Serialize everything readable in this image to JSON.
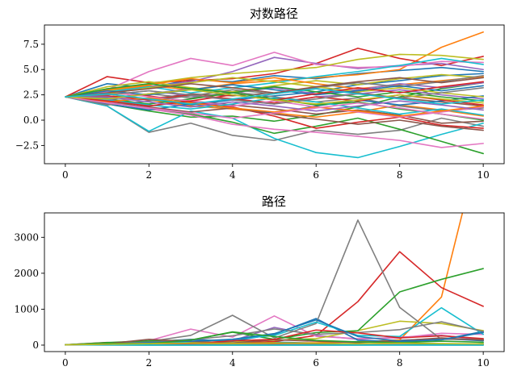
{
  "chart_data": [
    {
      "type": "line",
      "title": "对数路径",
      "xlabel": "",
      "ylabel": "",
      "xlim": [
        -0.5,
        10.5
      ],
      "ylim": [
        -4.3,
        9.4
      ],
      "xticks": [
        0,
        2,
        4,
        6,
        8,
        10
      ],
      "xtick_labels": [
        "0",
        "2",
        "4",
        "6",
        "8",
        "10"
      ],
      "yticks": [
        -2.5,
        0.0,
        2.5,
        5.0,
        7.5
      ],
      "ytick_labels": [
        "−2.5",
        "0.0",
        "2.5",
        "5.0",
        "7.5"
      ],
      "grid": false,
      "x": [
        0,
        1,
        2,
        3,
        4,
        5,
        6,
        7,
        8,
        9,
        10
      ],
      "series": [
        {
          "color": "#1f77b4",
          "values": [
            2.3,
            3.6,
            3.2,
            4.0,
            3.8,
            4.4,
            4.1,
            4.6,
            4.9,
            5.2,
            4.8
          ]
        },
        {
          "color": "#ff7f0e",
          "values": [
            2.3,
            2.9,
            3.4,
            3.0,
            3.6,
            3.9,
            4.2,
            4.5,
            5.0,
            7.2,
            8.7
          ]
        },
        {
          "color": "#2ca02c",
          "values": [
            2.3,
            1.6,
            0.9,
            0.3,
            0.4,
            -0.1,
            0.5,
            1.3,
            2.3,
            3.1,
            3.7
          ]
        },
        {
          "color": "#d62728",
          "values": [
            2.3,
            4.3,
            3.7,
            3.9,
            4.1,
            4.6,
            5.6,
            7.1,
            6.1,
            5.4,
            6.3
          ]
        },
        {
          "color": "#9467bd",
          "values": [
            2.3,
            2.7,
            3.3,
            3.8,
            4.8,
            6.2,
            5.6,
            5.1,
            5.4,
            5.6,
            5.0
          ]
        },
        {
          "color": "#8c564b",
          "values": [
            2.3,
            2.4,
            2.1,
            2.6,
            2.4,
            2.7,
            3.1,
            2.7,
            2.2,
            1.8,
            1.4
          ]
        },
        {
          "color": "#e377c2",
          "values": [
            2.3,
            3.0,
            4.8,
            6.1,
            5.4,
            6.7,
            5.5,
            5.2,
            5.3,
            5.8,
            5.7
          ]
        },
        {
          "color": "#7f7f7f",
          "values": [
            2.3,
            1.4,
            -1.2,
            -0.3,
            -1.5,
            -2.0,
            -1.0,
            -1.4,
            -1.0,
            0.2,
            -0.6
          ]
        },
        {
          "color": "#bcbd22",
          "values": [
            2.3,
            2.9,
            3.6,
            4.2,
            4.6,
            4.9,
            5.2,
            6.0,
            6.5,
            6.4,
            6.0
          ]
        },
        {
          "color": "#17becf",
          "values": [
            2.3,
            1.4,
            -1.1,
            0.9,
            0.2,
            -1.8,
            -3.2,
            -3.7,
            -2.6,
            -1.4,
            -0.3
          ]
        },
        {
          "color": "#1f77b4",
          "values": [
            2.3,
            1.9,
            2.1,
            1.5,
            2.0,
            2.4,
            2.8,
            3.5,
            3.9,
            4.4,
            4.6
          ]
        },
        {
          "color": "#ff7f0e",
          "values": [
            2.3,
            2.6,
            2.0,
            1.4,
            1.1,
            0.7,
            0.3,
            0.8,
            1.5,
            1.0,
            0.4
          ]
        },
        {
          "color": "#2ca02c",
          "values": [
            2.3,
            1.9,
            1.2,
            0.6,
            -0.2,
            -1.3,
            -0.6,
            0.2,
            -0.9,
            -2.1,
            -3.3
          ]
        },
        {
          "color": "#d62728",
          "values": [
            2.3,
            2.7,
            2.4,
            1.8,
            1.3,
            0.4,
            -0.8,
            -0.2,
            0.3,
            -0.5,
            -0.8
          ]
        },
        {
          "color": "#9467bd",
          "values": [
            2.3,
            2.5,
            2.9,
            2.4,
            2.0,
            1.6,
            2.3,
            2.6,
            3.0,
            2.5,
            2.1
          ]
        },
        {
          "color": "#8c564b",
          "values": [
            2.3,
            2.0,
            1.4,
            1.9,
            1.5,
            1.1,
            0.6,
            1.0,
            0.5,
            -0.3,
            -0.1
          ]
        },
        {
          "color": "#e377c2",
          "values": [
            2.3,
            1.8,
            1.1,
            0.5,
            -0.4,
            -0.9,
            -1.2,
            -1.6,
            -2.0,
            -2.7,
            -2.3
          ]
        },
        {
          "color": "#7f7f7f",
          "values": [
            2.3,
            2.2,
            2.6,
            2.2,
            2.8,
            2.3,
            1.8,
            2.2,
            1.4,
            0.9,
            1.2
          ]
        },
        {
          "color": "#bcbd22",
          "values": [
            2.3,
            3.3,
            3.8,
            3.2,
            2.8,
            3.4,
            3.9,
            3.5,
            4.1,
            4.5,
            4.2
          ]
        },
        {
          "color": "#17becf",
          "values": [
            2.3,
            2.8,
            3.3,
            2.7,
            3.2,
            3.7,
            4.3,
            4.8,
            5.4,
            6.1,
            5.5
          ]
        },
        {
          "color": "#1f77b4",
          "values": [
            2.3,
            1.6,
            1.0,
            1.6,
            1.2,
            0.7,
            1.4,
            2.0,
            1.5,
            1.9,
            2.4
          ]
        },
        {
          "color": "#ff7f0e",
          "values": [
            2.3,
            3.0,
            3.5,
            4.1,
            3.7,
            4.2,
            3.6,
            3.1,
            3.5,
            3.9,
            4.3
          ]
        },
        {
          "color": "#2ca02c",
          "values": [
            2.3,
            2.1,
            1.6,
            2.1,
            2.7,
            2.1,
            1.5,
            1.8,
            1.1,
            0.6,
            0.0
          ]
        },
        {
          "color": "#d62728",
          "values": [
            2.3,
            2.4,
            2.0,
            2.5,
            2.1,
            1.7,
            2.3,
            1.9,
            2.5,
            2.0,
            1.5
          ]
        },
        {
          "color": "#9467bd",
          "values": [
            2.3,
            2.0,
            2.6,
            3.1,
            2.7,
            3.2,
            2.6,
            3.0,
            3.6,
            3.2,
            3.7
          ]
        },
        {
          "color": "#8c564b",
          "values": [
            2.3,
            1.7,
            1.3,
            0.8,
            1.2,
            0.6,
            0.1,
            -0.4,
            0.0,
            -0.6,
            -1.0
          ]
        },
        {
          "color": "#e377c2",
          "values": [
            2.3,
            2.8,
            2.3,
            1.9,
            1.4,
            1.9,
            1.3,
            0.8,
            0.3,
            0.8,
            1.3
          ]
        },
        {
          "color": "#7f7f7f",
          "values": [
            2.3,
            1.5,
            1.9,
            2.4,
            3.0,
            2.6,
            3.2,
            3.7,
            3.3,
            3.8,
            4.4
          ]
        },
        {
          "color": "#bcbd22",
          "values": [
            2.3,
            2.6,
            3.2,
            3.7,
            4.2,
            3.8,
            3.3,
            2.8,
            3.2,
            2.7,
            2.3
          ]
        },
        {
          "color": "#17becf",
          "values": [
            2.3,
            2.0,
            1.5,
            1.1,
            1.6,
            2.2,
            1.8,
            1.2,
            0.6,
            1.1,
            0.5
          ]
        },
        {
          "color": "#1f77b4",
          "values": [
            2.3,
            2.9,
            2.5,
            3.0,
            3.5,
            3.0,
            2.5,
            2.9,
            3.4,
            2.9,
            3.4
          ]
        },
        {
          "color": "#ff7f0e",
          "values": [
            2.3,
            1.8,
            2.2,
            1.7,
            1.2,
            0.8,
            1.3,
            0.9,
            0.4,
            0.9,
            1.4
          ]
        },
        {
          "color": "#2ca02c",
          "values": [
            2.3,
            3.1,
            3.6,
            3.1,
            2.7,
            3.3,
            2.8,
            2.3,
            2.8,
            2.3,
            1.9
          ]
        },
        {
          "color": "#d62728",
          "values": [
            2.3,
            1.9,
            1.4,
            1.9,
            2.5,
            2.0,
            2.6,
            3.2,
            2.7,
            3.3,
            3.8
          ]
        },
        {
          "color": "#9467bd",
          "values": [
            2.3,
            2.3,
            1.8,
            1.3,
            1.8,
            1.4,
            0.9,
            1.4,
            1.9,
            1.5,
            1.0
          ]
        },
        {
          "color": "#8c564b",
          "values": [
            2.3,
            2.7,
            3.1,
            3.6,
            3.2,
            2.7,
            3.3,
            3.8,
            4.2,
            3.7,
            4.2
          ]
        },
        {
          "color": "#e377c2",
          "values": [
            2.3,
            1.7,
            1.2,
            0.7,
            0.2,
            0.7,
            1.2,
            1.7,
            1.2,
            0.6,
            0.1
          ]
        },
        {
          "color": "#7f7f7f",
          "values": [
            2.3,
            2.5,
            2.9,
            2.5,
            2.0,
            1.6,
            2.1,
            2.6,
            2.2,
            2.7,
            3.2
          ]
        },
        {
          "color": "#bcbd22",
          "values": [
            2.3,
            2.1,
            2.6,
            3.0,
            2.5,
            2.0,
            1.6,
            2.0,
            2.5,
            2.1,
            1.7
          ]
        },
        {
          "color": "#17becf",
          "values": [
            2.3,
            2.6,
            2.1,
            1.6,
            2.1,
            2.6,
            3.1,
            2.6,
            2.1,
            1.6,
            2.0
          ]
        }
      ]
    },
    {
      "type": "line",
      "title": "路径",
      "xlabel": "",
      "ylabel": "",
      "xlim": [
        -0.5,
        10.5
      ],
      "ylim": [
        -180,
        3680
      ],
      "xticks": [
        0,
        2,
        4,
        6,
        8,
        10
      ],
      "xtick_labels": [
        "0",
        "2",
        "4",
        "6",
        "8",
        "10"
      ],
      "yticks": [
        0,
        1000,
        2000,
        3000
      ],
      "ytick_labels": [
        "0",
        "1000",
        "2000",
        "3000"
      ],
      "grid": false,
      "x": [
        0,
        1,
        2,
        3,
        4,
        5,
        6,
        7,
        8,
        9,
        10
      ],
      "series": [
        {
          "color": "#1f77b4",
          "values": [
            10,
            37,
            25,
            55,
            45,
            82,
            60,
            100,
            134,
            181,
            122
          ]
        },
        {
          "color": "#ff7f0e",
          "values": [
            10,
            18,
            30,
            20,
            37,
            49,
            67,
            90,
            148,
            1340,
            6000
          ]
        },
        {
          "color": "#2ca02c",
          "values": [
            10,
            5,
            2,
            1,
            1,
            1,
            2,
            4,
            10,
            22,
            40
          ]
        },
        {
          "color": "#d62728",
          "values": [
            10,
            74,
            40,
            49,
            60,
            99,
            270,
            1210,
            2600,
            1600,
            1080
          ]
        },
        {
          "color": "#9467bd",
          "values": [
            10,
            15,
            27,
            45,
            122,
            493,
            270,
            164,
            221,
            270,
            148
          ]
        },
        {
          "color": "#8c564b",
          "values": [
            10,
            11,
            8,
            13,
            11,
            15,
            22,
            15,
            9,
            6,
            4
          ]
        },
        {
          "color": "#e377c2",
          "values": [
            10,
            20,
            122,
            446,
            221,
            812,
            245,
            181,
            200,
            330,
            299
          ]
        },
        {
          "color": "#7f7f7f",
          "values": [
            10,
            4,
            0,
            1,
            0,
            0,
            0,
            0,
            0,
            1,
            1
          ]
        },
        {
          "color": "#bcbd22",
          "values": [
            10,
            18,
            37,
            67,
            99,
            134,
            181,
            403,
            665,
            602,
            403
          ]
        },
        {
          "color": "#17becf",
          "values": [
            10,
            4,
            0,
            2,
            1,
            0,
            0,
            0,
            0,
            0,
            1
          ]
        },
        {
          "color": "#1f77b4",
          "values": [
            10,
            30,
            90,
            160,
            110,
            300,
            740,
            140,
            90,
            150,
            380
          ]
        },
        {
          "color": "#7f7f7f",
          "values": [
            10,
            60,
            100,
            270,
            830,
            200,
            600,
            3480,
            1050,
            160,
            160
          ]
        },
        {
          "color": "#2ca02c",
          "values": [
            10,
            70,
            120,
            140,
            360,
            160,
            350,
            400,
            1480,
            1830,
            2130
          ]
        },
        {
          "color": "#17becf",
          "values": [
            10,
            40,
            60,
            90,
            160,
            270,
            640,
            270,
            240,
            1040,
            300
          ]
        },
        {
          "color": "#7f7f7f",
          "values": [
            10,
            50,
            80,
            150,
            260,
            450,
            300,
            350,
            430,
            650,
            380
          ]
        },
        {
          "color": "#8c564b",
          "values": [
            10,
            40,
            160,
            100,
            60,
            150,
            110,
            70,
            120,
            200,
            140
          ]
        },
        {
          "color": "#d62728",
          "values": [
            10,
            30,
            50,
            40,
            120,
            160,
            420,
            340,
            200,
            260,
            180
          ]
        },
        {
          "color": "#1f77b4",
          "values": [
            10,
            20,
            70,
            110,
            160,
            320,
            700,
            240,
            110,
            150,
            350
          ]
        },
        {
          "color": "#2ca02c",
          "values": [
            10,
            50,
            40,
            140,
            370,
            240,
            130,
            90,
            70,
            110,
            80
          ]
        },
        {
          "color": "#bcbd22",
          "values": [
            10,
            25,
            42,
            58,
            47,
            63,
            50,
            38,
            55,
            42,
            33
          ]
        }
      ]
    }
  ]
}
